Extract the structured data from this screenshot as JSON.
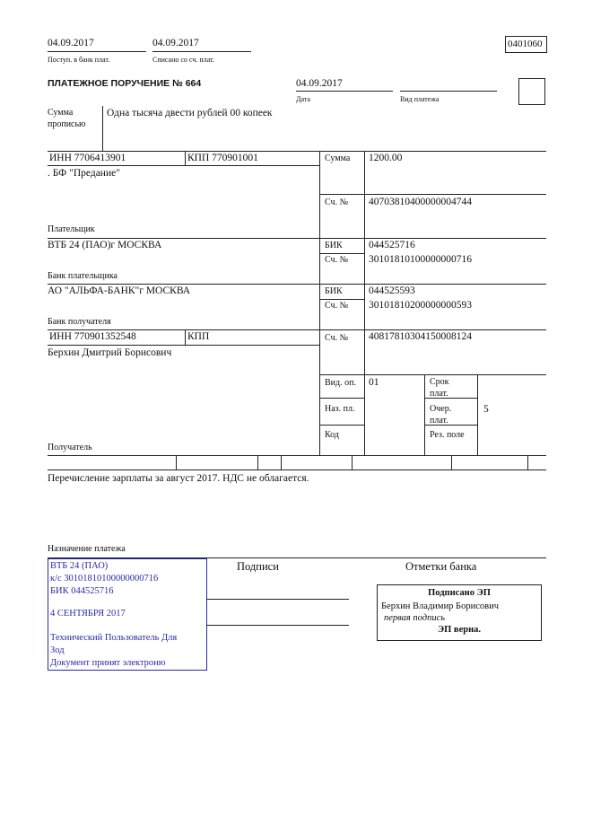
{
  "header": {
    "received_date": "04.09.2017",
    "received_label": "Поступ. в банк плат.",
    "debited_date": "04.09.2017",
    "debited_label": "Списано со сч. плат.",
    "form_code": "0401060"
  },
  "title": "ПЛАТЕЖНОЕ ПОРУЧЕНИЕ № 664",
  "date": {
    "value": "04.09.2017",
    "label": "Дата"
  },
  "payment_type": {
    "value": "",
    "label": "Вид платежа"
  },
  "amount_words": {
    "label_1": "Сумма",
    "label_2": "прописью",
    "value": "Одна тысяча двести рублей 00 копеек"
  },
  "payer": {
    "inn": "ИНН 7706413901",
    "kpp": "КПП 770901001",
    "name": ". БФ \"Предание\"",
    "label": "Плательщик",
    "account_label": "Сч. №",
    "account": "40703810400000004744"
  },
  "amount": {
    "label": "Сумма",
    "value": "1200.00"
  },
  "payer_bank": {
    "name": "ВТБ 24 (ПАО)г МОСКВА",
    "label": "Банк плательщика",
    "bik_label": "БИК",
    "bik": "044525716",
    "account_label": "Сч. №",
    "account": "30101810100000000716"
  },
  "payee_bank": {
    "name": "АО \"АЛЬФА-БАНК\"г МОСКВА",
    "label": "Банк получателя",
    "bik_label": "БИК",
    "bik": "044525593",
    "account_label": "Сч. №",
    "account": "30101810200000000593"
  },
  "payee": {
    "inn": "ИНН 770901352548",
    "kpp": "КПП",
    "name": "Берхин Дмитрий Борисович",
    "label": "Получатель",
    "account_label": "Сч. №",
    "account": "40817810304150008124"
  },
  "codes": {
    "op_type_label": "Вид. оп.",
    "op_type": "01",
    "purpose_code_label": "Наз. пл.",
    "code_label": "Код",
    "term_label_1": "Срок",
    "term_label_2": "плат.",
    "order_label_1": "Очер.",
    "order_label_2": "плат.",
    "order": "5",
    "reserve_label": "Рез. поле"
  },
  "purpose": {
    "text": "Перечисление зарплаты за август 2017. НДС не облагается.",
    "label": "Назначение платежа"
  },
  "stamp": {
    "lines": [
      "ВТБ 24 (ПАО)",
      "к/с 30101810100000000716",
      "БИК 044525716",
      "4 СЕНТЯБРЯ 2017",
      "Технический Пользователь Для",
      "Зод",
      "Документ принят электроню"
    ],
    "color": "#2a2aa8"
  },
  "signatures_label": "Подписи",
  "bank_marks": {
    "label": "Отметки банка",
    "signed": "Подписано ЭП",
    "signer": "Берхин Владимир Борисович",
    "signature_type": "первая подпись",
    "verified": "ЭП верна."
  }
}
